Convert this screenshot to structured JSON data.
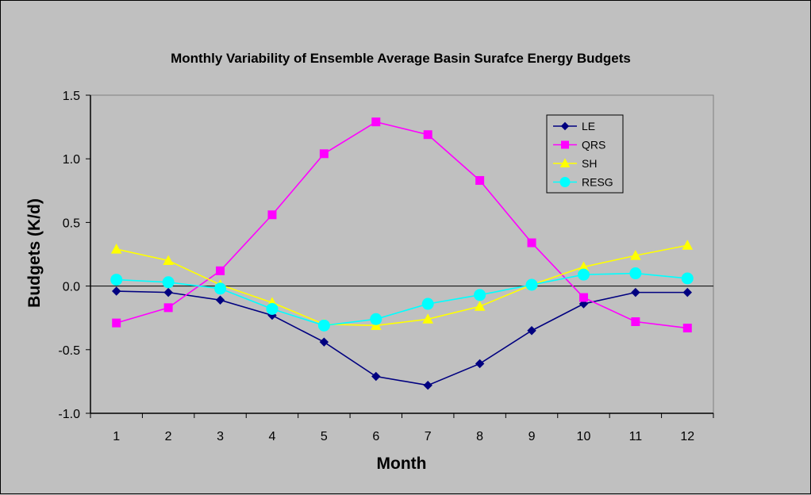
{
  "chart_data": {
    "type": "line",
    "title": "Monthly Variability of Ensemble Average Basin Surafce Energy Budgets",
    "xlabel": "Month",
    "ylabel": "Budgets (K/d)",
    "categories": [
      "1",
      "2",
      "3",
      "4",
      "5",
      "6",
      "7",
      "8",
      "9",
      "10",
      "11",
      "12"
    ],
    "ylim": [
      -1.0,
      1.5
    ],
    "yticks": [
      "-1.0",
      "-0.5",
      "0.0",
      "0.5",
      "1.0",
      "1.5"
    ],
    "ytick_values": [
      -1.0,
      -0.5,
      0.0,
      0.5,
      1.0,
      1.5
    ],
    "grid": false,
    "zero_line": true,
    "plot_background": "#c0c0c0",
    "legend_position": "top-right",
    "series": [
      {
        "name": "LE",
        "color": "#000080",
        "marker": "diamond",
        "values": [
          -0.04,
          -0.05,
          -0.11,
          -0.23,
          -0.44,
          -0.71,
          -0.78,
          -0.61,
          -0.35,
          -0.14,
          -0.05,
          -0.05
        ]
      },
      {
        "name": "QRS",
        "color": "#ff00ff",
        "marker": "square",
        "values": [
          -0.29,
          -0.17,
          0.12,
          0.56,
          1.04,
          1.29,
          1.19,
          0.83,
          0.34,
          -0.09,
          -0.28,
          -0.33
        ]
      },
      {
        "name": "SH",
        "color": "#ffff00",
        "marker": "triangle",
        "values": [
          0.29,
          0.2,
          0.01,
          -0.13,
          -0.3,
          -0.31,
          -0.26,
          -0.16,
          0.01,
          0.15,
          0.24,
          0.32
        ]
      },
      {
        "name": "RESG",
        "color": "#00ffff",
        "marker": "circle",
        "values": [
          0.05,
          0.03,
          -0.02,
          -0.18,
          -0.31,
          -0.26,
          -0.14,
          -0.07,
          0.01,
          0.09,
          0.1,
          0.06
        ]
      }
    ]
  }
}
